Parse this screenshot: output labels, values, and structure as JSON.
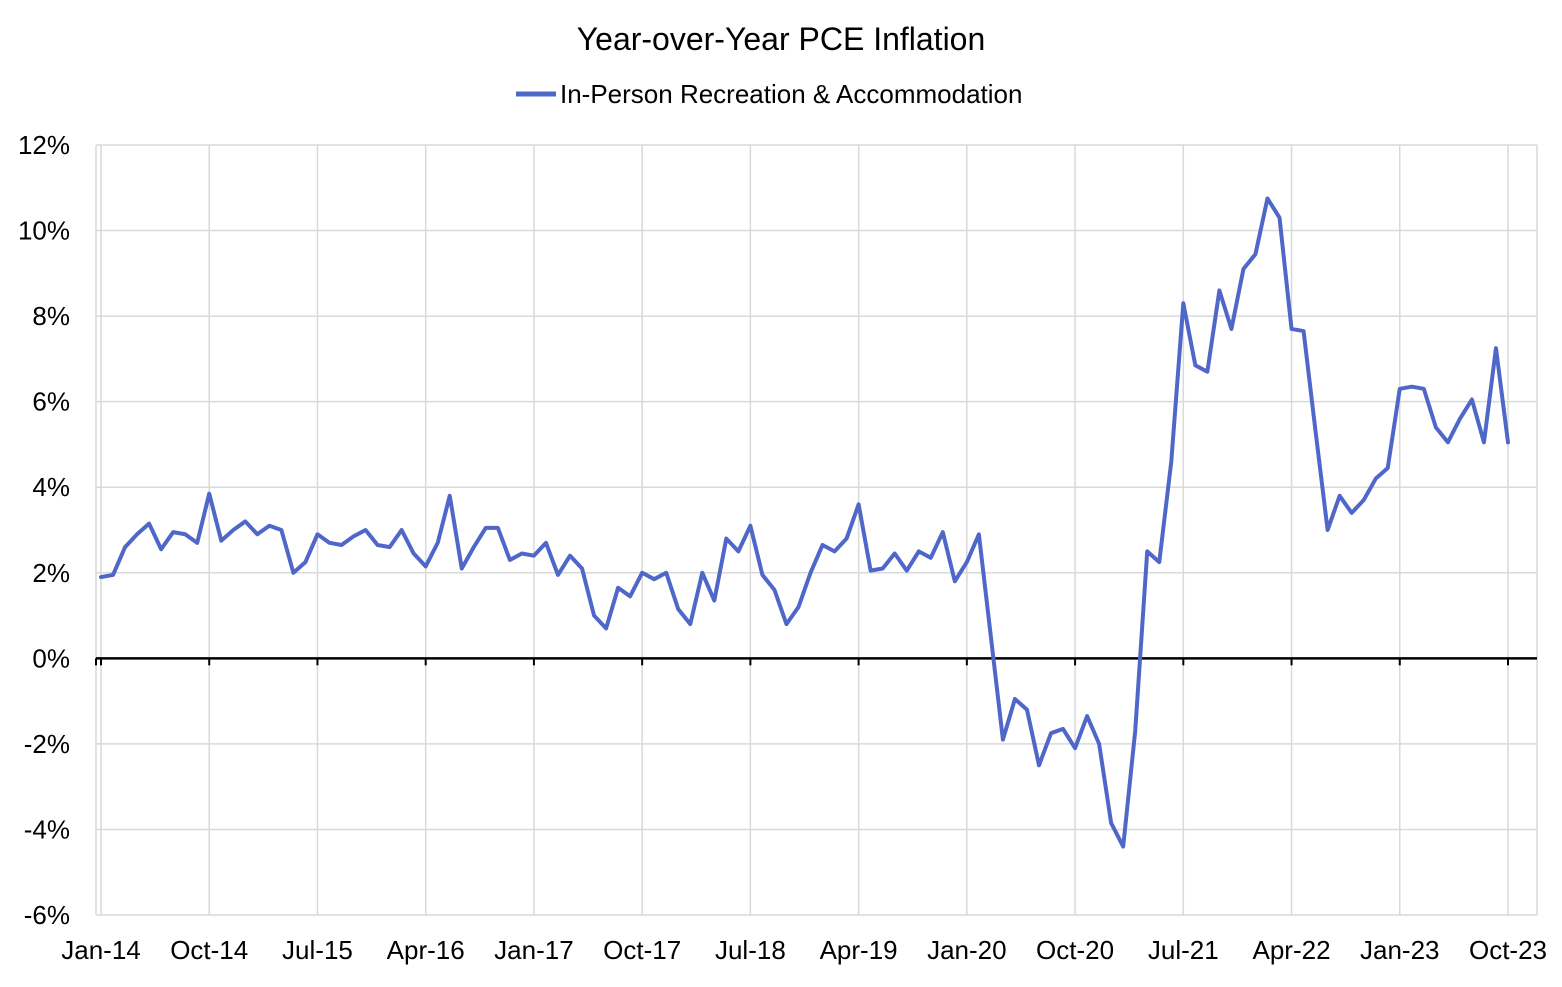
{
  "chart_data": {
    "type": "line",
    "title": "Year-over-Year PCE Inflation",
    "xlabel": "",
    "ylabel": "",
    "ylim": [
      -6,
      12
    ],
    "yticks": [
      -6,
      -4,
      -2,
      0,
      2,
      4,
      6,
      8,
      10,
      12
    ],
    "ytick_labels": [
      "-6%",
      "-4%",
      "-2%",
      "0%",
      "2%",
      "4%",
      "6%",
      "8%",
      "10%",
      "12%"
    ],
    "x_tick_labels": [
      "Jan-14",
      "Oct-14",
      "Jul-15",
      "Apr-16",
      "Jan-17",
      "Oct-17",
      "Jul-18",
      "Apr-19",
      "Jan-20",
      "Oct-20",
      "Jul-21",
      "Apr-22",
      "Jan-23",
      "Oct-23"
    ],
    "x_tick_every_months": 9,
    "start": "Jan-14",
    "grid": true,
    "legend_position": "top-center",
    "series": [
      {
        "name": "In-Person Recreation & Accommodation",
        "color": "#4f67c9",
        "values": [
          1.9,
          1.95,
          2.6,
          2.9,
          3.15,
          2.55,
          2.95,
          2.9,
          2.7,
          3.85,
          2.75,
          3.0,
          3.2,
          2.9,
          3.1,
          3.0,
          2.0,
          2.25,
          2.9,
          2.7,
          2.65,
          2.85,
          3.0,
          2.65,
          2.6,
          3.0,
          2.45,
          2.15,
          2.7,
          3.8,
          2.1,
          2.6,
          3.05,
          3.05,
          2.3,
          2.45,
          2.4,
          2.7,
          1.95,
          2.4,
          2.1,
          1.0,
          0.7,
          1.65,
          1.45,
          2.0,
          1.85,
          2.0,
          1.15,
          0.8,
          2.0,
          1.35,
          2.8,
          2.5,
          3.1,
          1.95,
          1.6,
          0.8,
          1.2,
          2.0,
          2.65,
          2.5,
          2.8,
          3.6,
          2.05,
          2.1,
          2.45,
          2.05,
          2.5,
          2.35,
          2.95,
          1.8,
          2.25,
          2.9,
          0.5,
          -1.9,
          -0.95,
          -1.2,
          -2.5,
          -1.75,
          -1.65,
          -2.1,
          -1.35,
          -2.0,
          -3.85,
          -4.4,
          -1.7,
          2.5,
          2.25,
          4.6,
          8.3,
          6.85,
          6.7,
          8.6,
          7.7,
          9.1,
          9.45,
          10.75,
          10.3,
          7.7,
          7.65,
          5.3,
          3.0,
          3.8,
          3.4,
          3.7,
          4.2,
          4.45,
          6.3,
          6.35,
          6.3,
          5.4,
          5.05,
          5.6,
          6.05,
          5.05,
          7.25,
          5.05
        ]
      }
    ]
  }
}
